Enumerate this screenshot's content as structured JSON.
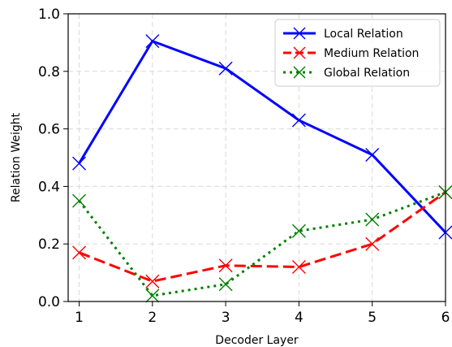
{
  "chart_data": {
    "type": "line",
    "title": "",
    "xlabel": "Decoder Layer",
    "ylabel": "Relation Weight",
    "x": [
      1,
      2,
      3,
      4,
      5,
      6
    ],
    "xlim": [
      0.85,
      6.0
    ],
    "ylim": [
      0.0,
      1.0
    ],
    "xticks": [
      "1",
      "2",
      "3",
      "4",
      "5",
      "6"
    ],
    "yticks": [
      "0.0",
      "0.2",
      "0.4",
      "0.6",
      "0.8",
      "1.0"
    ],
    "grid": true,
    "legend_position": "top-right",
    "series": [
      {
        "name": "Local Relation",
        "values": [
          0.48,
          0.905,
          0.81,
          0.63,
          0.51,
          0.24
        ],
        "color": "#0000ff",
        "line_style": "solid",
        "marker": "x"
      },
      {
        "name": "Medium Relation",
        "values": [
          0.17,
          0.07,
          0.125,
          0.12,
          0.2,
          0.38
        ],
        "color": "#ff0000",
        "line_style": "dashed",
        "marker": "x"
      },
      {
        "name": "Global Relation",
        "values": [
          0.35,
          0.02,
          0.06,
          0.245,
          0.285,
          0.38
        ],
        "color": "#008000",
        "line_style": "dotted",
        "marker": "x"
      }
    ]
  }
}
